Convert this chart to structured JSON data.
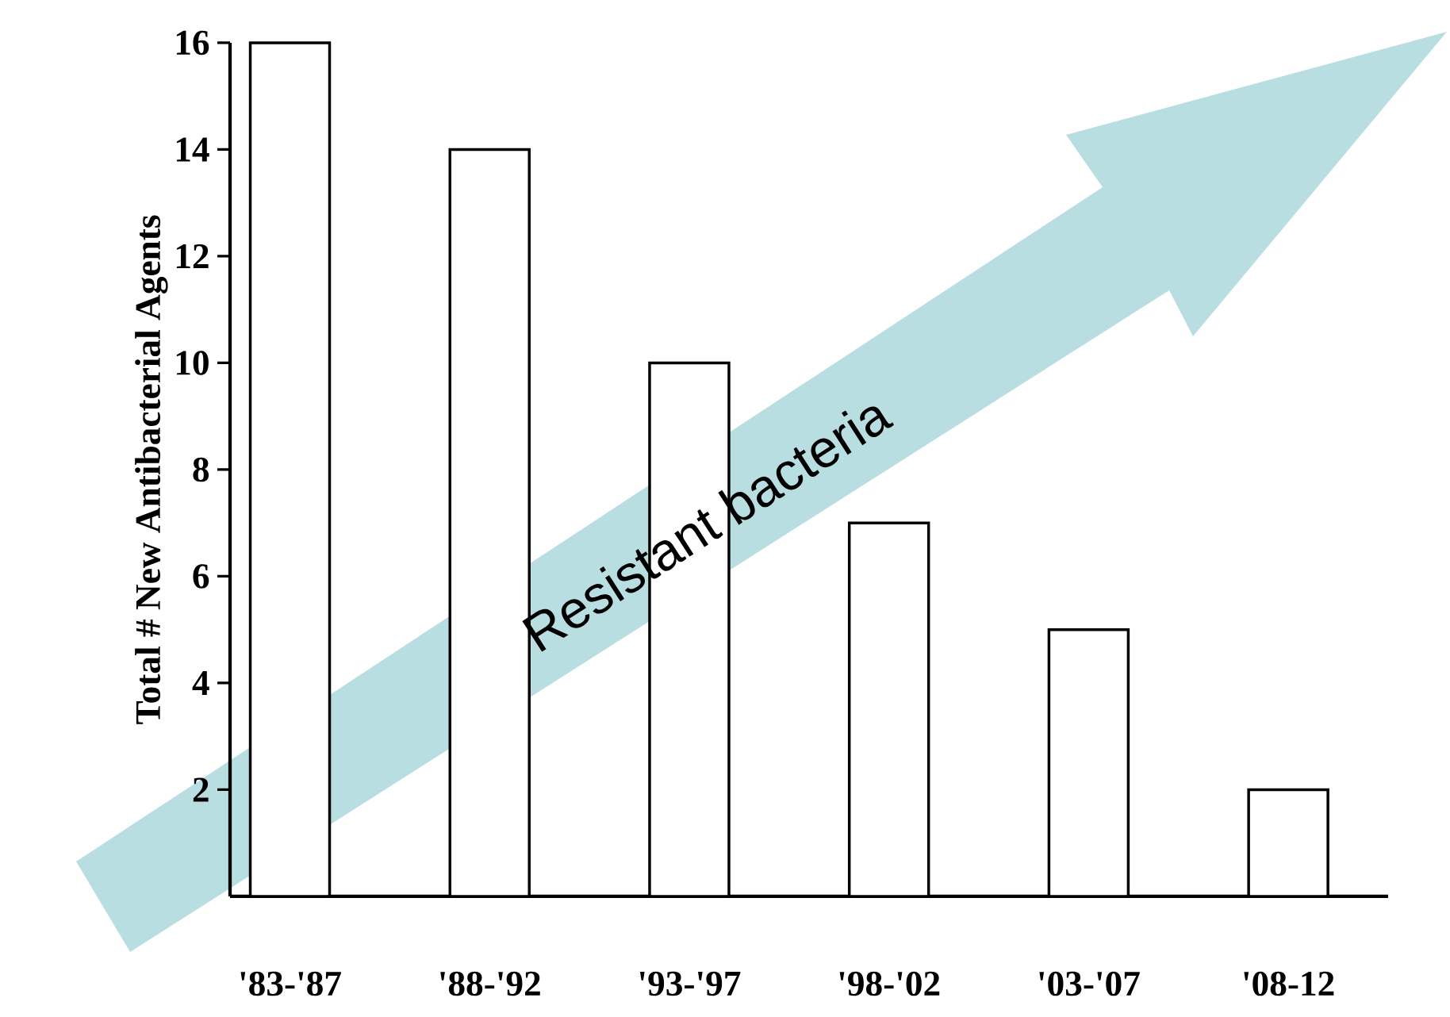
{
  "chart_data": {
    "type": "bar",
    "ylabel": "Total # New Antibacterial Agents",
    "categories": [
      "'83-'87",
      "'88-'92",
      "'93-'97",
      "'98-'02",
      "'03-'07",
      "'08-12"
    ],
    "values": [
      16,
      14,
      10,
      7,
      5,
      2
    ],
    "color": "#ffffff",
    "ylim": [
      0,
      16
    ],
    "yticks": [
      2,
      4,
      6,
      8,
      10,
      12,
      14,
      16
    ],
    "annotations": [
      "Resistant bacteria"
    ]
  }
}
